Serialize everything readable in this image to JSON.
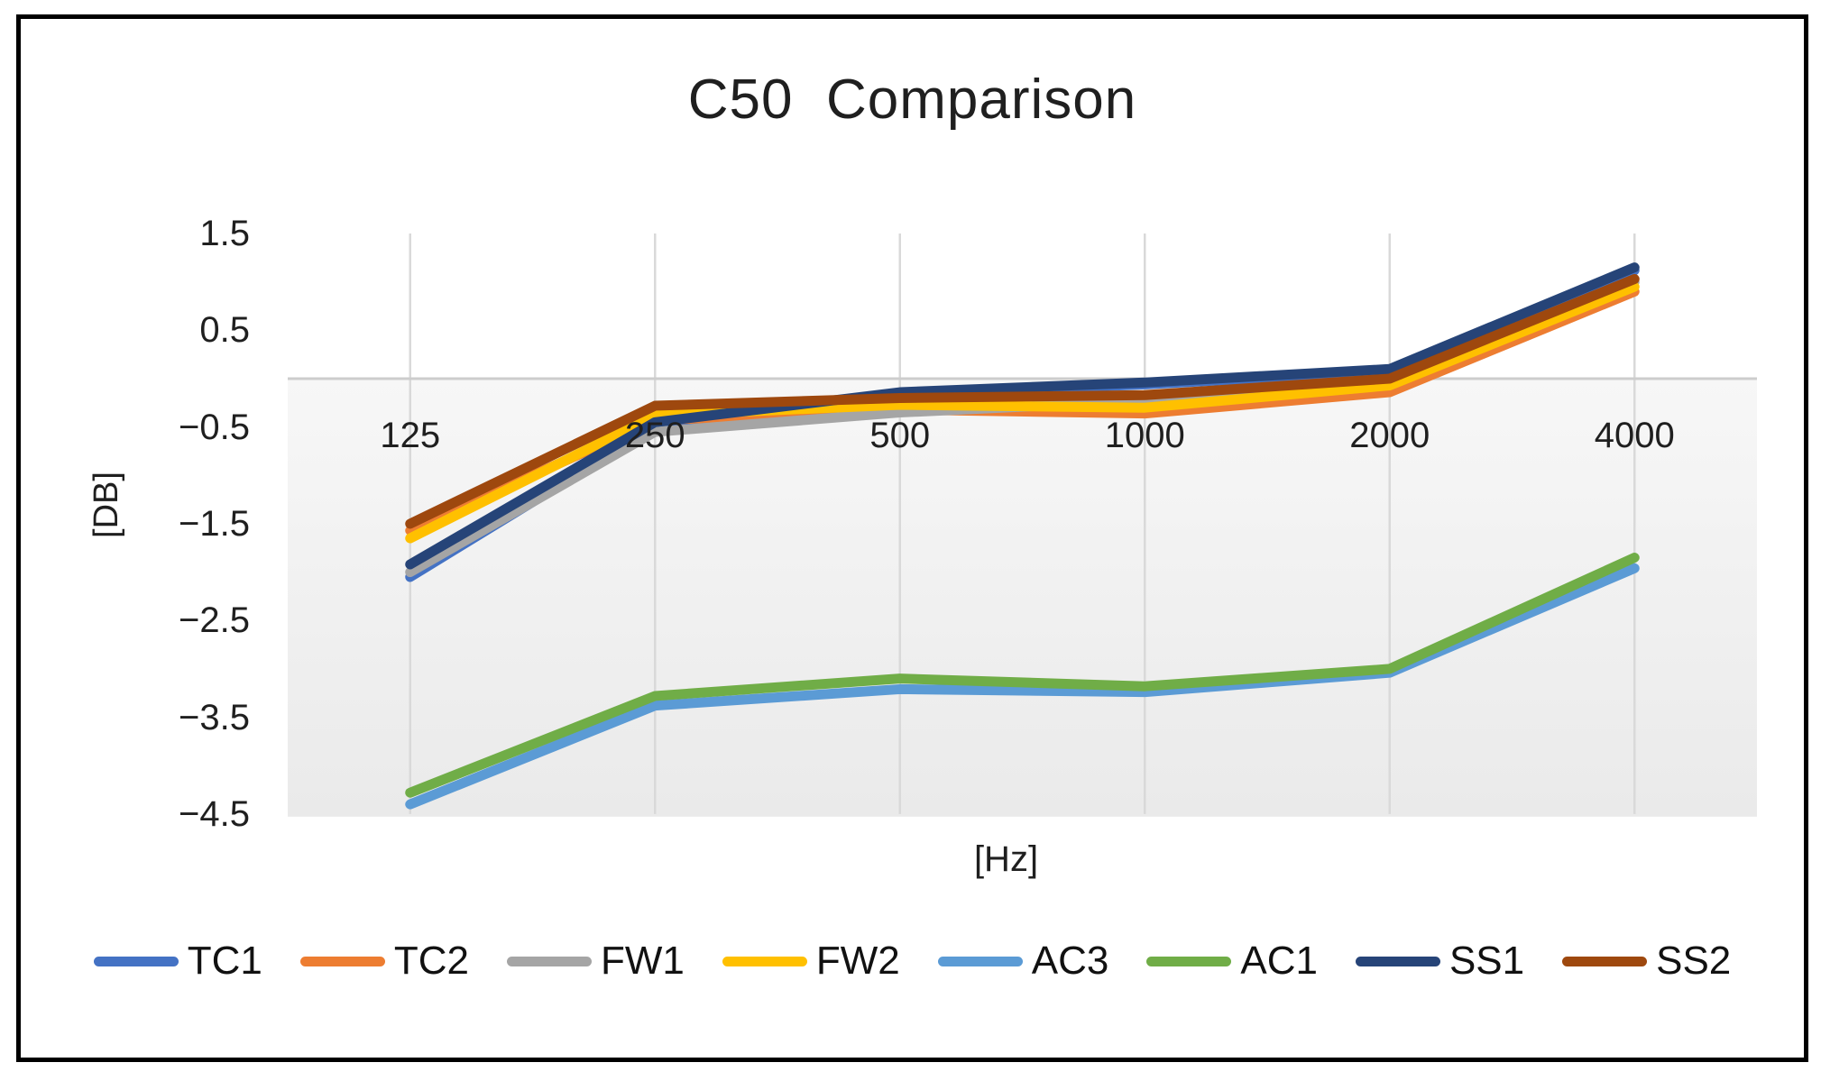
{
  "chart": {
    "title": "C50  Comparison",
    "x_axis_title": "[Hz]",
    "y_axis_title": "[DB]"
  },
  "chart_data": {
    "type": "line",
    "title": "C50  Comparison",
    "xlabel": "[Hz]",
    "ylabel": "[DB]",
    "categories": [
      "125",
      "250",
      "500",
      "1000",
      "2000",
      "4000"
    ],
    "ylim": [
      -4.5,
      1.5
    ],
    "y_ticks": [
      1.5,
      0.5,
      -0.5,
      -1.5,
      -2.5,
      -3.5,
      -4.5
    ],
    "y_tick_labels": [
      "1.5",
      "0.5",
      "−0.5",
      "−1.5",
      "−2.5",
      "−3.5",
      "−4.5"
    ],
    "grid": "vertical-lines-at-categories-and-zero-line",
    "legend_position": "bottom",
    "plot_colors": {
      "grid_line": "#d9d9d9",
      "zero_axis_line": "#cdcdcd",
      "plot_fill_top": "#f7f7f7",
      "plot_fill_bottom": "#eaeaea"
    },
    "series": [
      {
        "name": "TC1",
        "color": "#4472C4",
        "values": [
          -2.05,
          -0.5,
          -0.16,
          -0.06,
          0.08,
          1.12
        ]
      },
      {
        "name": "TC2",
        "color": "#ED7D31",
        "values": [
          -1.57,
          -0.43,
          -0.32,
          -0.36,
          -0.14,
          0.9
        ]
      },
      {
        "name": "FW1",
        "color": "#A5A5A5",
        "values": [
          -2.0,
          -0.55,
          -0.35,
          -0.23,
          -0.04,
          1.0
        ]
      },
      {
        "name": "FW2",
        "color": "#FFC000",
        "values": [
          -1.65,
          -0.38,
          -0.27,
          -0.3,
          -0.07,
          0.95
        ]
      },
      {
        "name": "AC3",
        "color": "#5B9BD5",
        "values": [
          -4.4,
          -3.38,
          -3.21,
          -3.24,
          -3.04,
          -1.96
        ]
      },
      {
        "name": "AC1",
        "color": "#70AD47",
        "values": [
          -4.28,
          -3.28,
          -3.1,
          -3.18,
          -3.0,
          -1.85
        ]
      },
      {
        "name": "SS1",
        "color": "#264478",
        "values": [
          -1.92,
          -0.45,
          -0.14,
          -0.04,
          0.1,
          1.15
        ]
      },
      {
        "name": "SS2",
        "color": "#9E480E",
        "values": [
          -1.5,
          -0.28,
          -0.2,
          -0.17,
          0.0,
          1.03
        ]
      }
    ]
  }
}
